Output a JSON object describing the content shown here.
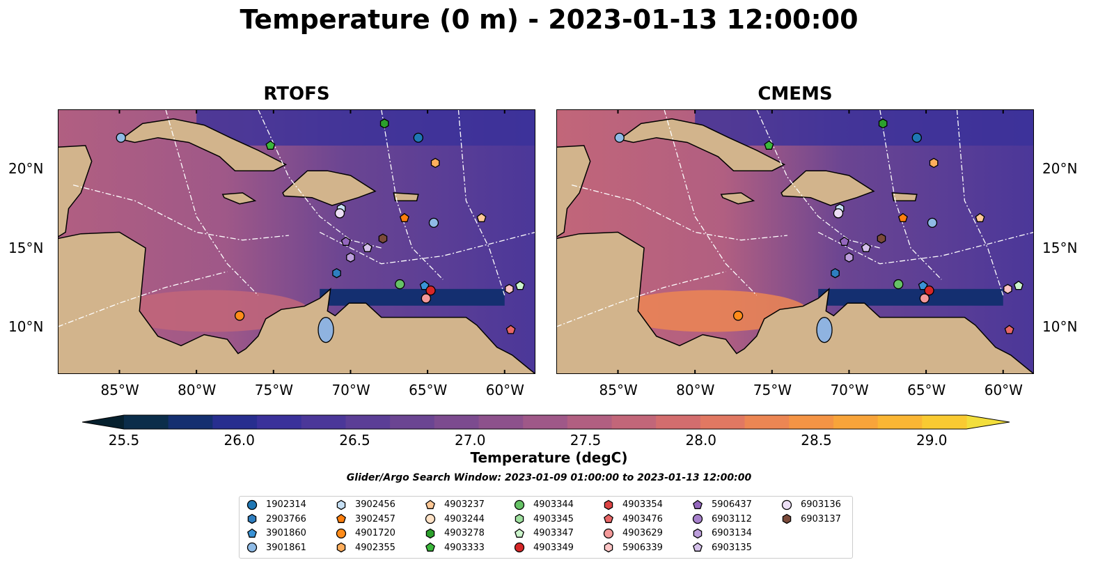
{
  "title": "Temperature (0 m) - 2023-01-13 12:00:00",
  "panels": [
    {
      "name": "RTOFS"
    },
    {
      "name": "CMEMS"
    }
  ],
  "lon_ticks": [
    "85°W",
    "80°W",
    "75°W",
    "70°W",
    "65°W",
    "60°W"
  ],
  "lat_ticks": [
    "20°N",
    "15°N",
    "10°N"
  ],
  "colorbar": {
    "ticks": [
      "25.5",
      "26.0",
      "26.5",
      "27.0",
      "27.5",
      "28.0",
      "28.5",
      "29.0"
    ],
    "label": "Temperature (degC)",
    "colors": [
      "#06202e",
      "#0b2d4a",
      "#142f70",
      "#272e8f",
      "#3a319a",
      "#4b3799",
      "#5b3e96",
      "#6b4592",
      "#7c4b8f",
      "#8d518c",
      "#9f5888",
      "#b15f81",
      "#c26679",
      "#d36d6e",
      "#e17862",
      "#ec8653",
      "#f49445",
      "#f8a43a",
      "#fab634",
      "#f9ca32",
      "#f2de3c"
    ],
    "range": [
      25.5,
      29.0
    ]
  },
  "search_window": "Glider/Argo Search Window: 2023-01-09 01:00:00 to 2023-01-13 12:00:00",
  "legend": [
    {
      "id": "1902314",
      "marker": "circle",
      "color": "#1f77b4"
    },
    {
      "id": "2903766",
      "marker": "hexagon",
      "color": "#2e7ec0"
    },
    {
      "id": "3901860",
      "marker": "pentagon",
      "color": "#3a93d6"
    },
    {
      "id": "3901861",
      "marker": "circle",
      "color": "#8fbbe6"
    },
    {
      "id": "3902456",
      "marker": "hexagon",
      "color": "#c6e0f5"
    },
    {
      "id": "3902457",
      "marker": "pentagon",
      "color": "#ff7f0e"
    },
    {
      "id": "4901720",
      "marker": "circle",
      "color": "#ff8c1a"
    },
    {
      "id": "4902355",
      "marker": "hexagon",
      "color": "#ffae5c"
    },
    {
      "id": "4903237",
      "marker": "pentagon",
      "color": "#ffc896"
    },
    {
      "id": "4903244",
      "marker": "circle",
      "color": "#ffe2c6"
    },
    {
      "id": "4903278",
      "marker": "hexagon",
      "color": "#2ca02c"
    },
    {
      "id": "4903333",
      "marker": "pentagon",
      "color": "#3bb83b"
    },
    {
      "id": "4903344",
      "marker": "circle",
      "color": "#66c266"
    },
    {
      "id": "4903345",
      "marker": "hexagon",
      "color": "#9fe09f"
    },
    {
      "id": "4903347",
      "marker": "pentagon",
      "color": "#ccf5cc"
    },
    {
      "id": "4903349",
      "marker": "circle",
      "color": "#d62728"
    },
    {
      "id": "4903354",
      "marker": "hexagon",
      "color": "#dd4444"
    },
    {
      "id": "4903476",
      "marker": "pentagon",
      "color": "#e86666"
    },
    {
      "id": "4903629",
      "marker": "circle",
      "color": "#f49a9a"
    },
    {
      "id": "5906339",
      "marker": "hexagon",
      "color": "#fcc5c5"
    },
    {
      "id": "5906437",
      "marker": "pentagon",
      "color": "#9467bd"
    },
    {
      "id": "6903112",
      "marker": "circle",
      "color": "#a781cc"
    },
    {
      "id": "6903134",
      "marker": "hexagon",
      "color": "#bd9fdc"
    },
    {
      "id": "6903135",
      "marker": "pentagon",
      "color": "#d5c1ea"
    },
    {
      "id": "6903136",
      "marker": "circle",
      "color": "#ecdff5"
    },
    {
      "id": "6903137",
      "marker": "hexagon",
      "color": "#7b4a3a"
    }
  ],
  "floats": [
    {
      "id": "1902314",
      "lon": -65.6,
      "lat": 22.0
    },
    {
      "id": "2903766",
      "lon": -70.9,
      "lat": 13.4
    },
    {
      "id": "3901860",
      "lon": -65.2,
      "lat": 12.6
    },
    {
      "id": "3901861",
      "lon": -64.6,
      "lat": 16.6
    },
    {
      "id": "3902456",
      "lon": -70.6,
      "lat": 17.5
    },
    {
      "id": "3902457",
      "lon": -66.5,
      "lat": 16.9
    },
    {
      "id": "4901720",
      "lon": -77.2,
      "lat": 10.7
    },
    {
      "id": "4902355",
      "lon": -64.5,
      "lat": 20.4
    },
    {
      "id": "4903278",
      "lon": -67.8,
      "lat": 22.9
    },
    {
      "id": "4903333",
      "lon": -75.2,
      "lat": 21.5
    },
    {
      "id": "4903344",
      "lon": -66.8,
      "lat": 12.7
    },
    {
      "id": "4903347",
      "lon": -59.0,
      "lat": 12.6
    },
    {
      "id": "4903349",
      "lon": -64.8,
      "lat": 12.3
    },
    {
      "id": "4903476",
      "lon": -59.6,
      "lat": 9.8
    },
    {
      "id": "4903629",
      "lon": -65.1,
      "lat": 11.8
    },
    {
      "id": "5906339",
      "lon": -59.7,
      "lat": 12.4
    },
    {
      "id": "5906437",
      "lon": -70.3,
      "lat": 15.4
    },
    {
      "id": "6903134",
      "lon": -70.0,
      "lat": 14.4
    },
    {
      "id": "6903135",
      "lon": -68.9,
      "lat": 15.0
    },
    {
      "id": "6903136",
      "lon": -70.7,
      "lat": 17.2
    },
    {
      "id": "6903137",
      "lon": -67.9,
      "lat": 15.6
    },
    {
      "id": "4903237",
      "lon": -61.5,
      "lat": 16.9
    },
    {
      "id": "3901861",
      "lon": -84.9,
      "lat": 22.0
    }
  ]
}
